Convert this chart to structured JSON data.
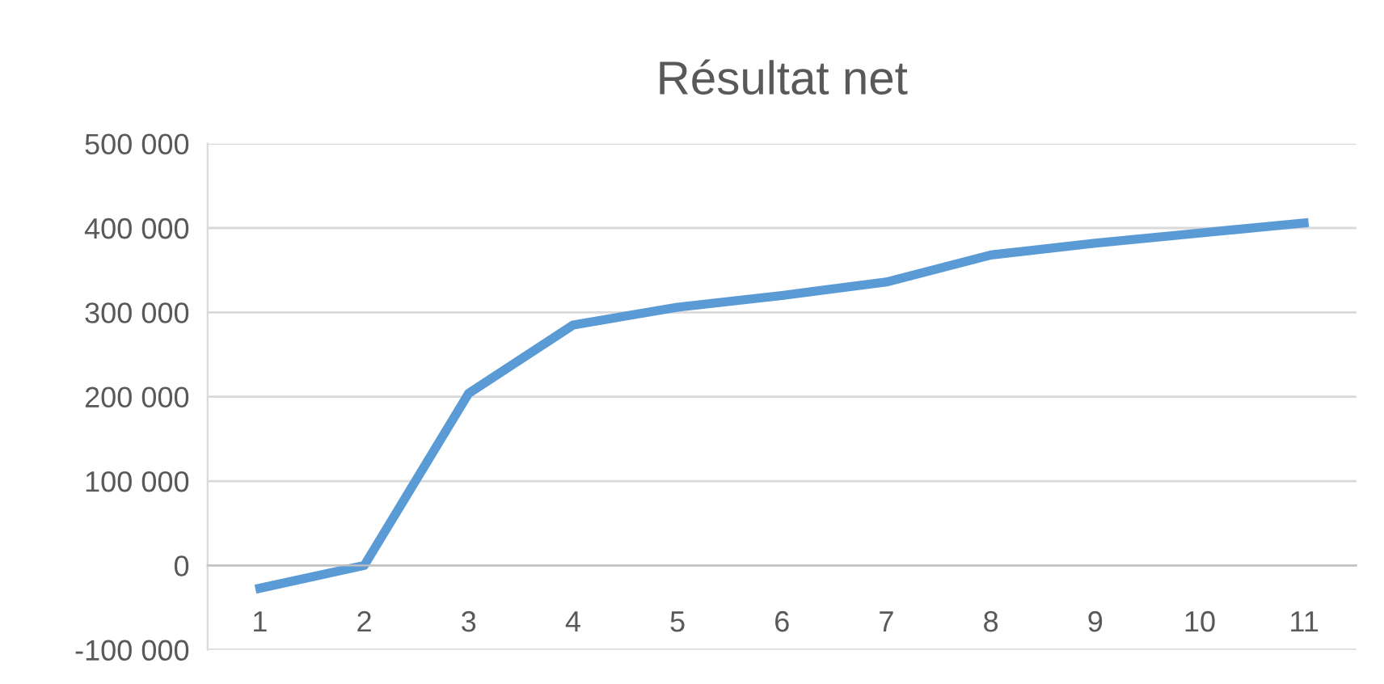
{
  "chart_data": {
    "type": "line",
    "title": "Résultat net",
    "categories": [
      "1",
      "2",
      "3",
      "4",
      "5",
      "6",
      "7",
      "8",
      "9",
      "10",
      "11"
    ],
    "series": [
      {
        "color": "#5b9bd5",
        "values": [
          -27000,
          0,
          204000,
          285000,
          306000,
          320000,
          336000,
          368000,
          382000,
          394000,
          406000
        ]
      }
    ],
    "ylim": [
      -100000,
      500000
    ],
    "yticks": [
      {
        "value": -100000,
        "label": "-100 000"
      },
      {
        "value": 0,
        "label": "0"
      },
      {
        "value": 100000,
        "label": "100 000"
      },
      {
        "value": 200000,
        "label": "200 000"
      },
      {
        "value": 300000,
        "label": "300 000"
      },
      {
        "value": 400000,
        "label": "400 000"
      },
      {
        "value": 500000,
        "label": "500 000"
      }
    ],
    "grid": "y",
    "legend": false,
    "marker": "none",
    "line_style": "solid"
  }
}
